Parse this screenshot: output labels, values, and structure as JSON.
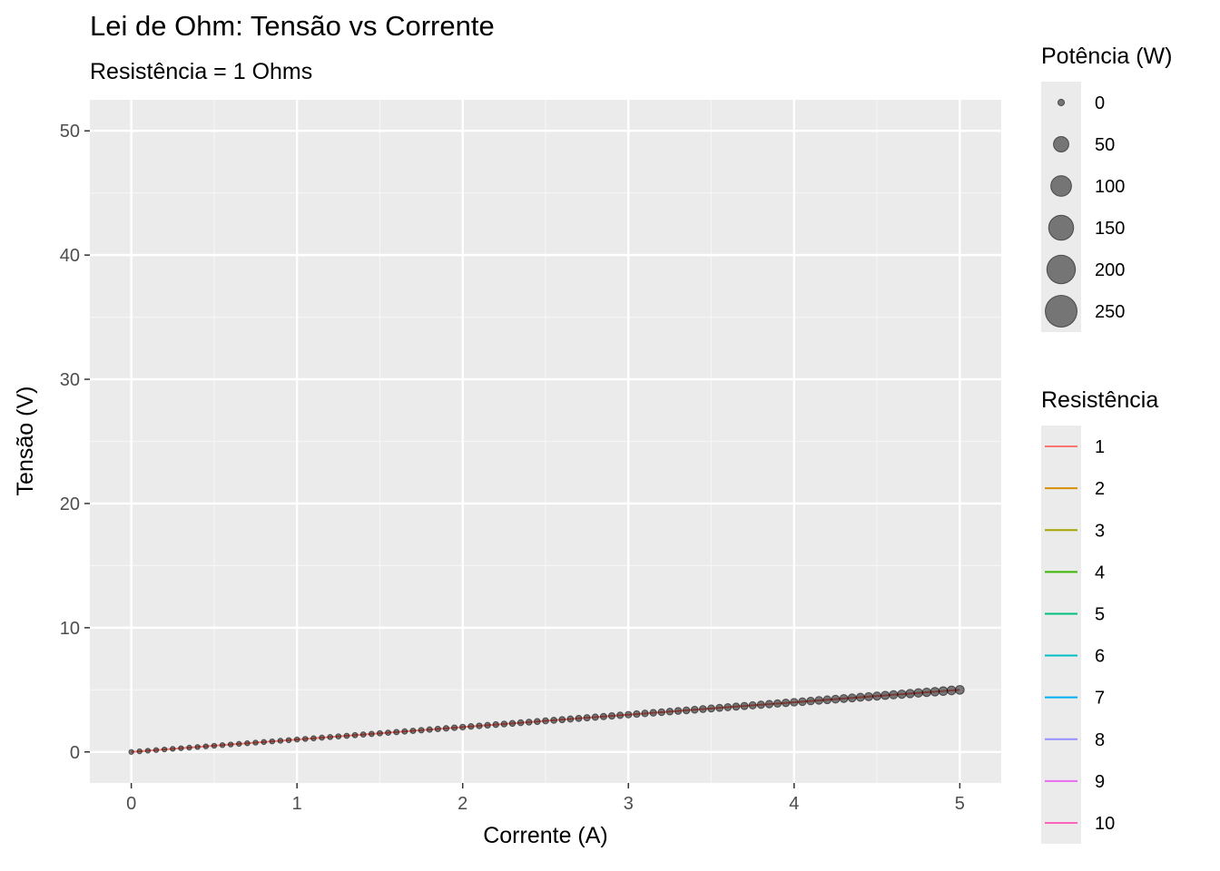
{
  "chart_data": {
    "type": "scatter",
    "title": "Lei de Ohm: Tensão vs Corrente",
    "subtitle": "Resistência = 1 Ohms",
    "xlabel": "Corrente (A)",
    "ylabel": "Tensão (V)",
    "xlim": [
      -0.25,
      5.25
    ],
    "ylim": [
      -2.5,
      52.5
    ],
    "x_ticks": [
      0,
      1,
      2,
      3,
      4,
      5
    ],
    "x_tick_labels": [
      "0",
      "1",
      "2",
      "3",
      "4",
      "5"
    ],
    "y_ticks": [
      0,
      10,
      20,
      30,
      40,
      50
    ],
    "y_tick_labels": [
      "0",
      "10",
      "20",
      "30",
      "40",
      "50"
    ],
    "grid": true,
    "series": [
      {
        "resistance": 1,
        "color": "#F8766D",
        "x_start": 0,
        "x_end": 5,
        "n_points": 101,
        "relation": "V = I * R, P = V * I"
      }
    ],
    "point_fill": "#000000",
    "point_opacity": 0.5,
    "size_legend": {
      "title": "Potência (W)",
      "position": "right",
      "breaks": [
        0,
        50,
        100,
        150,
        200,
        250
      ],
      "labels": [
        "0",
        "50",
        "100",
        "150",
        "200",
        "250"
      ],
      "range": [
        0,
        250
      ]
    },
    "color_legend": {
      "title": "Resistência",
      "position": "right",
      "labels": [
        "1",
        "2",
        "3",
        "4",
        "5",
        "6",
        "7",
        "8",
        "9",
        "10"
      ],
      "colors": [
        "#F8766D",
        "#D89000",
        "#A3A500",
        "#39B600",
        "#00BF7D",
        "#00BFC4",
        "#00B0F6",
        "#9590FF",
        "#E76BF3",
        "#FF62BC"
      ]
    },
    "colors": {
      "panel_bg": "#EBEBEB",
      "grid_major": "#FFFFFF",
      "grid_minor": "#F5F5F5",
      "tick_text": "#4D4D4D",
      "tick_mark": "#333333"
    }
  }
}
